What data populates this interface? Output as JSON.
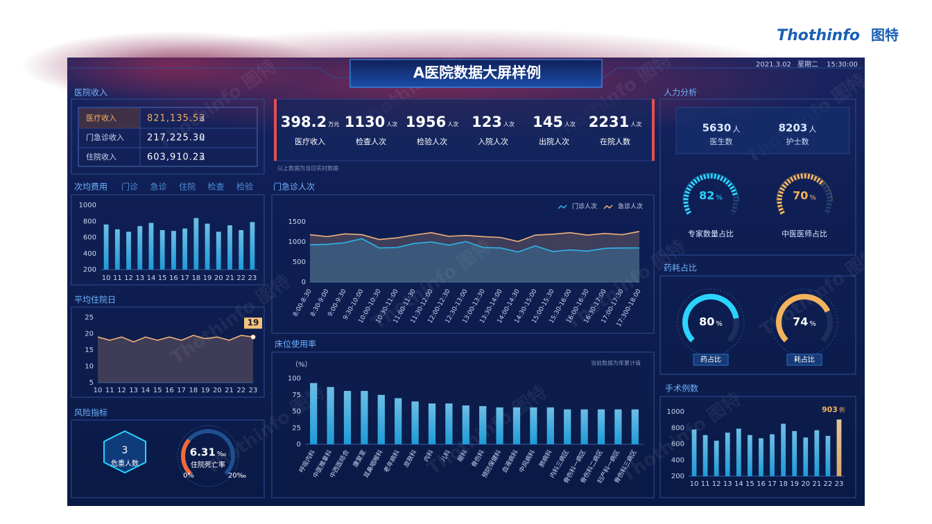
{
  "brand": {
    "name": "Thothinfo",
    "cn": "图特"
  },
  "title": "A医院数据大屏样例",
  "date": "2021.3.02",
  "weekday": "星期二",
  "time": "15:30:00",
  "watermark": "Thothinfo 图特",
  "income": {
    "title": "医院收入",
    "rows": [
      {
        "label": "医疗收入",
        "value": "821,135.53",
        "unit": "元"
      },
      {
        "label": "门急诊收入",
        "value": "217,225.30",
        "unit": "元"
      },
      {
        "label": "住院收入",
        "value": "603,910.23",
        "unit": "元"
      }
    ]
  },
  "kpis": {
    "items": [
      {
        "value": 398.2,
        "unit": "万元",
        "label": "医疗收入"
      },
      {
        "value": 1130,
        "unit": "人次",
        "label": "检查人次"
      },
      {
        "value": 1956,
        "unit": "人次",
        "label": "检验人次"
      },
      {
        "value": 123,
        "unit": "人次",
        "label": "入院人次"
      },
      {
        "value": 145,
        "unit": "人次",
        "label": "出院人次"
      },
      {
        "value": 2231,
        "unit": "人次",
        "label": "在院人数"
      }
    ],
    "note": "以上数据为当日实时数据"
  },
  "manpower": {
    "title": "人力分析",
    "items": [
      {
        "value": 5630,
        "unit": "人",
        "label": "医生数"
      },
      {
        "value": 8203,
        "unit": "人",
        "label": "护士数"
      }
    ],
    "ratios": [
      {
        "value": 82,
        "unit": "%",
        "label": "专家数量占比",
        "color": "#2ad4ff"
      },
      {
        "value": 70,
        "unit": "%",
        "label": "中医医师占比",
        "color": "#f2b35e"
      }
    ]
  },
  "drug": {
    "title": "药耗占比",
    "items": [
      {
        "value": 80,
        "unit": "%",
        "label": "药占比",
        "color": "#2ad4ff"
      },
      {
        "value": 74,
        "unit": "%",
        "label": "耗占比",
        "color": "#f2b35e"
      }
    ]
  },
  "risk": {
    "title": "风险指标",
    "critical": {
      "value": 3,
      "label": "危重人数"
    },
    "mortality": {
      "value": 6.31,
      "unit": "‰",
      "label": "住院死亡率",
      "min": {
        "value": 0,
        "label": "0%"
      },
      "max": {
        "value": 20,
        "label": "20‰"
      },
      "color": "#2ad4ff"
    }
  },
  "chart_data": [
    {
      "type": "bar",
      "title": "次均费用",
      "tabs": [
        "门诊",
        "急诊",
        "住院",
        "检查",
        "检验"
      ],
      "categories": [
        "10",
        "11",
        "12",
        "13",
        "14",
        "15",
        "16",
        "17",
        "18",
        "19",
        "20",
        "21",
        "22",
        "23"
      ],
      "values": [
        760,
        700,
        670,
        740,
        780,
        690,
        680,
        710,
        840,
        770,
        670,
        750,
        690,
        790
      ],
      "color": "#1e9bd7",
      "ylim": [
        200,
        1000
      ],
      "yticks": [
        200,
        400,
        600,
        800,
        1000
      ]
    },
    {
      "type": "line",
      "title": "门急诊人次",
      "categories": [
        "8:00-8:30",
        "8:30-9:00",
        "9:00-9:30",
        "9:30-10:00",
        "10:00-10:30",
        "10:30-11:00",
        "11:00-11:30",
        "11:30-12:00",
        "12:00-12:30",
        "12:30-13:00",
        "13:00-13:30",
        "13:30-14:00",
        "14:00-14:30",
        "14:30-15:00",
        "15:00-15:30",
        "15:30-16:00",
        "16:00-16:30",
        "16:30-17:00",
        "17:00-17:30",
        "17:300-18:00"
      ],
      "series": [
        {
          "name": "门诊人次",
          "color": "#2fb5e8",
          "values": [
            930,
            940,
            980,
            1080,
            850,
            860,
            960,
            1000,
            920,
            1010,
            860,
            850,
            750,
            900,
            760,
            800,
            770,
            840,
            850,
            850
          ]
        },
        {
          "name": "急诊人次",
          "color": "#f0b27a",
          "values": [
            1180,
            1130,
            1200,
            1180,
            1060,
            1100,
            1170,
            1230,
            1140,
            1160,
            1130,
            1110,
            1010,
            1170,
            1190,
            1230,
            1170,
            1210,
            1180,
            1260
          ]
        }
      ],
      "ylim": [
        0,
        1500
      ],
      "yticks": [
        0,
        500,
        1000,
        1500
      ]
    },
    {
      "type": "line",
      "title": "平均住院日",
      "categories": [
        "10",
        "11",
        "12",
        "13",
        "14",
        "15",
        "16",
        "17",
        "18",
        "19",
        "20",
        "21",
        "22",
        "23"
      ],
      "values": [
        19,
        18,
        19,
        17.5,
        19,
        18,
        19,
        18,
        19.5,
        18.5,
        19,
        18,
        19.5,
        19
      ],
      "color": "#f0b27a",
      "ylim": [
        5,
        25
      ],
      "yticks": [
        5,
        10,
        15,
        20,
        25
      ]
    },
    {
      "type": "bar",
      "title": "床位使用率",
      "y_label": "（%）",
      "note": "当前数据为年累计值",
      "categories": [
        "呼吸内科",
        "中医推拿科",
        "中西医结合",
        "康复室",
        "耳鼻咽喉科",
        "老年病科",
        "皮肤科",
        "内科",
        "儿科",
        "眼科",
        "骨伤科",
        "预防保健科",
        "血液病科",
        "中风病科",
        "肺病科",
        "内科三病区",
        "骨伤科一病区",
        "骨伤科二病区",
        "妇产科一病区",
        "骨伤科三病区"
      ],
      "values": [
        93,
        87,
        81,
        81,
        75,
        70,
        65,
        62,
        62,
        59,
        58,
        56,
        56,
        56,
        56,
        53,
        53,
        53,
        53,
        53
      ],
      "color": "#1e9bd7",
      "ylim": [
        0,
        100
      ],
      "yticks": [
        0,
        25,
        50,
        75,
        100
      ]
    },
    {
      "type": "bar",
      "title": "手术例数",
      "unit": "例",
      "categories": [
        "10",
        "11",
        "12",
        "13",
        "14",
        "15",
        "16",
        "17",
        "18",
        "19",
        "20",
        "21",
        "22",
        "23"
      ],
      "values": [
        780,
        710,
        640,
        740,
        790,
        710,
        670,
        720,
        850,
        760,
        680,
        770,
        700,
        903
      ],
      "colors": [
        "#1e9bd7",
        "#1e9bd7",
        "#1e9bd7",
        "#1e9bd7",
        "#1e9bd7",
        "#1e9bd7",
        "#1e9bd7",
        "#1e9bd7",
        "#1e9bd7",
        "#1e9bd7",
        "#1e9bd7",
        "#1e9bd7",
        "#1e9bd7",
        "#d9a86a"
      ],
      "ylim": [
        200,
        1000
      ],
      "yticks": [
        200,
        400,
        600,
        800,
        1000
      ]
    }
  ]
}
